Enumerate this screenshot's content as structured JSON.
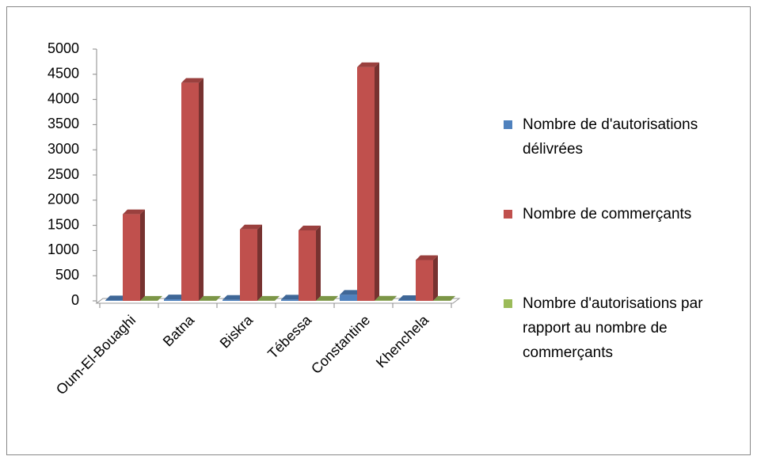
{
  "chart_data": {
    "type": "bar3d",
    "categories": [
      "Oum-El-Bouaghi",
      "Batna",
      "Biskra",
      "Tébessa",
      "Constantine",
      "Khenchela"
    ],
    "series": [
      {
        "name": "Nombre de d'autorisations délivrées",
        "color": "#4f81bd",
        "values": [
          10,
          30,
          20,
          25,
          120,
          15
        ]
      },
      {
        "name": "Nombre de commerçants",
        "color": "#c0504d",
        "values": [
          1720,
          4330,
          1420,
          1400,
          4640,
          810
        ]
      },
      {
        "name": "Nombre d'autorisations par rapport au nombre de commerçants",
        "color": "#9bbb59",
        "values": [
          1,
          1,
          1,
          2,
          3,
          2
        ]
      }
    ],
    "ylim": [
      0,
      5000
    ],
    "yticks": [
      0,
      500,
      1000,
      1500,
      2000,
      2500,
      3000,
      3500,
      4000,
      4500,
      5000
    ]
  }
}
